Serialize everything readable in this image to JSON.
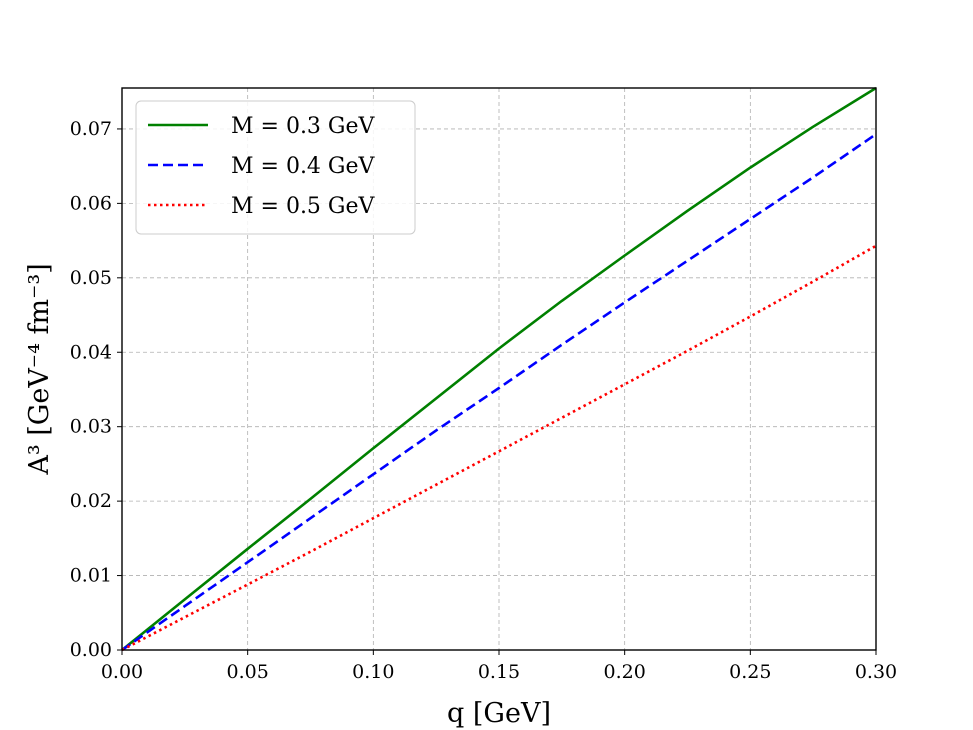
{
  "chart_data": {
    "type": "line",
    "xlabel": "q [GeV]",
    "ylabel": "A³ [GeV⁻⁴ fm⁻³]",
    "xlim": [
      0.0,
      0.3
    ],
    "ylim": [
      0.0,
      0.0755
    ],
    "x_ticks": [
      "0.00",
      "0.05",
      "0.10",
      "0.15",
      "0.20",
      "0.25",
      "0.30"
    ],
    "y_ticks": [
      "0.00",
      "0.01",
      "0.02",
      "0.03",
      "0.04",
      "0.05",
      "0.06",
      "0.07"
    ],
    "grid": true,
    "legend_position": "top-left",
    "x": [
      0.0,
      0.025,
      0.05,
      0.075,
      0.1,
      0.125,
      0.15,
      0.175,
      0.2,
      0.225,
      0.25,
      0.275,
      0.3
    ],
    "series": [
      {
        "name": "M = 0.3 GeV",
        "color": "#008000",
        "line_style": "solid",
        "values": [
          0.0,
          0.0068,
          0.0136,
          0.0203,
          0.0271,
          0.0338,
          0.0405,
          0.0469,
          0.053,
          0.059,
          0.0648,
          0.0703,
          0.0755
        ]
      },
      {
        "name": "M = 0.4 GeV",
        "color": "#0000ff",
        "line_style": "dashed",
        "values": [
          0.0,
          0.0059,
          0.0118,
          0.0177,
          0.0236,
          0.0295,
          0.0352,
          0.041,
          0.0467,
          0.0523,
          0.0579,
          0.0635,
          0.0693
        ]
      },
      {
        "name": "M = 0.5 GeV",
        "color": "#ff0000",
        "line_style": "dotted",
        "values": [
          0.0,
          0.0044,
          0.0088,
          0.0132,
          0.0177,
          0.0222,
          0.0267,
          0.0312,
          0.0357,
          0.0402,
          0.0448,
          0.0495,
          0.0543
        ]
      }
    ]
  }
}
